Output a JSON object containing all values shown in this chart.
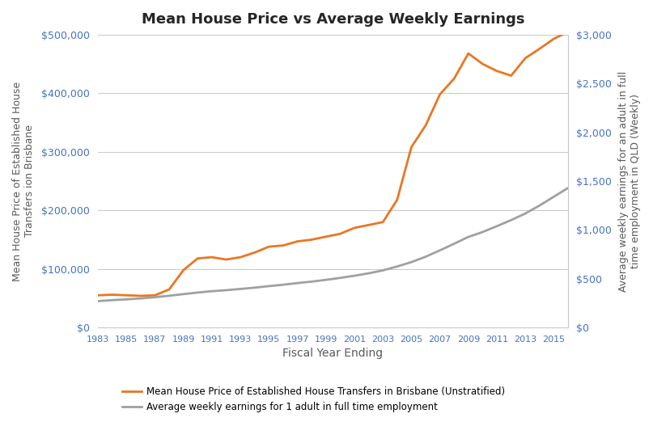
{
  "title": "Mean House Price vs Average Weekly Earnings",
  "xlabel": "Fiscal Year Ending",
  "ylabel_left": "Mean House Price of Established House\nTransfers ion Brisbane",
  "ylabel_right": "Average weekly earnings for an adult in full\ntime employment in QLD (Weekly)",
  "years": [
    1983,
    1984,
    1985,
    1986,
    1987,
    1988,
    1989,
    1990,
    1991,
    1992,
    1993,
    1994,
    1995,
    1996,
    1997,
    1998,
    1999,
    2000,
    2001,
    2002,
    2003,
    2004,
    2005,
    2006,
    2007,
    2008,
    2009,
    2010,
    2011,
    2012,
    2013,
    2014,
    2015,
    2016
  ],
  "house_prices": [
    55000,
    56000,
    55000,
    54000,
    55000,
    65000,
    98000,
    118000,
    120000,
    116000,
    120000,
    128000,
    138000,
    140000,
    147000,
    150000,
    155000,
    160000,
    170000,
    175000,
    180000,
    218000,
    308000,
    345000,
    398000,
    425000,
    468000,
    450000,
    438000,
    430000,
    460000,
    476000,
    493000,
    505000
  ],
  "weekly_earnings": [
    270,
    280,
    288,
    298,
    310,
    325,
    342,
    358,
    372,
    382,
    395,
    408,
    424,
    438,
    455,
    470,
    488,
    508,
    530,
    555,
    585,
    625,
    670,
    725,
    790,
    858,
    928,
    978,
    1038,
    1100,
    1168,
    1250,
    1340,
    1430
  ],
  "house_color": "#E87722",
  "earnings_color": "#A0A0A0",
  "background_color": "#ffffff",
  "legend_house": "Mean House Price of Established House Transfers in Brisbane (Unstratified)",
  "legend_earnings": "Average weekly earnings for 1 adult in full time employment",
  "ylim_left": [
    0,
    500000
  ],
  "ylim_right": [
    0,
    3000
  ],
  "xtick_labels": [
    "1983",
    "1985",
    "1987",
    "1989",
    "1991",
    "1993",
    "1995",
    "1997",
    "1999",
    "2001",
    "2003",
    "2005",
    "2007",
    "2009",
    "2011",
    "2013",
    "2015"
  ],
  "xtick_years": [
    1983,
    1985,
    1987,
    1989,
    1991,
    1993,
    1995,
    1997,
    1999,
    2001,
    2003,
    2005,
    2007,
    2009,
    2011,
    2013,
    2015
  ],
  "tick_label_color": "#4472C4",
  "axis_label_color": "#595959",
  "title_color": "#262626",
  "grid_color": "#C8C8C8",
  "spine_color": "#C8C8C8"
}
